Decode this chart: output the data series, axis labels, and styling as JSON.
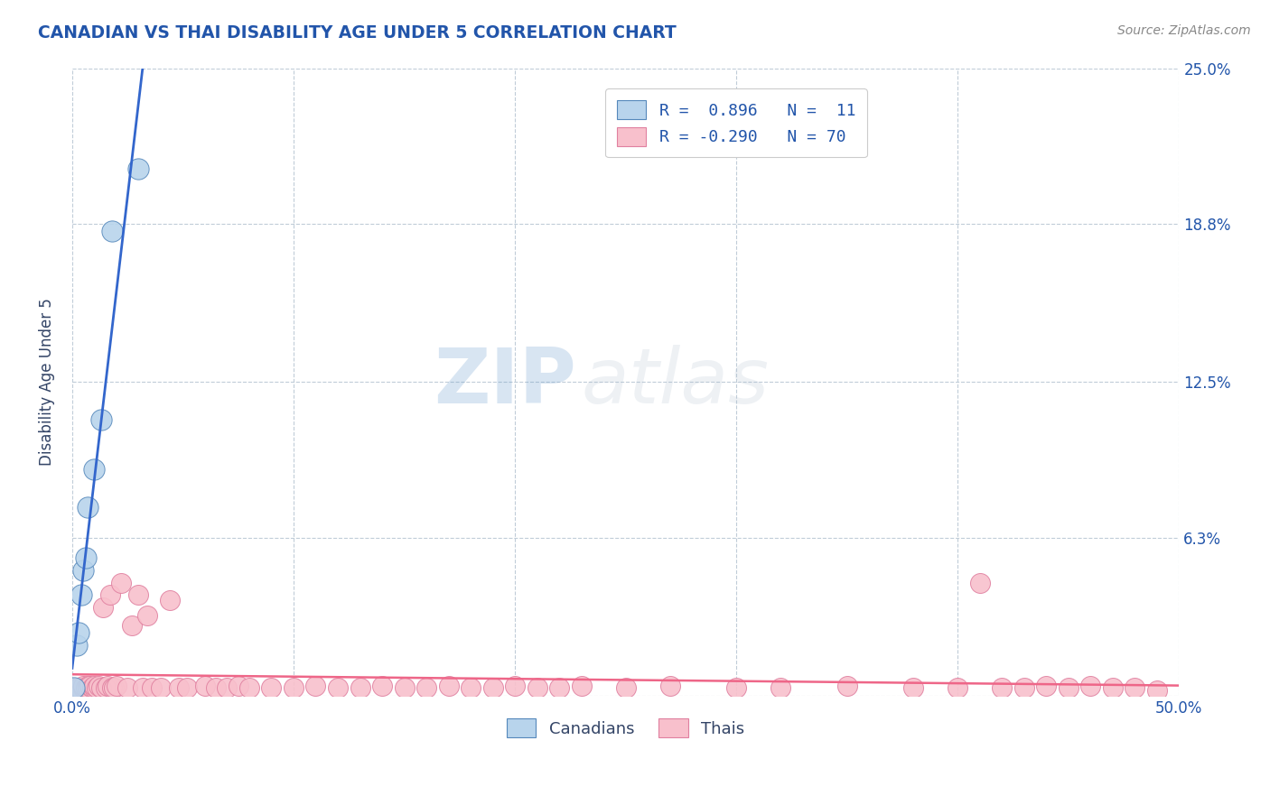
{
  "title": "CANADIAN VS THAI DISABILITY AGE UNDER 5 CORRELATION CHART",
  "source_text": "Source: ZipAtlas.com",
  "ylabel": "Disability Age Under 5",
  "xlabel": "",
  "xlim": [
    0.0,
    0.5
  ],
  "ylim": [
    0.0,
    0.25
  ],
  "yticks": [
    0.0,
    0.063,
    0.125,
    0.188,
    0.25
  ],
  "ytick_labels": [
    "",
    "6.3%",
    "12.5%",
    "18.8%",
    "25.0%"
  ],
  "xticks": [
    0.0,
    0.1,
    0.2,
    0.3,
    0.4,
    0.5
  ],
  "xtick_labels": [
    "0.0%",
    "",
    "",
    "",
    "",
    "50.0%"
  ],
  "canadian_x": [
    0.001,
    0.002,
    0.003,
    0.004,
    0.005,
    0.006,
    0.007,
    0.01,
    0.013,
    0.018,
    0.03
  ],
  "canadian_y": [
    0.003,
    0.02,
    0.025,
    0.04,
    0.05,
    0.055,
    0.075,
    0.09,
    0.11,
    0.185,
    0.21
  ],
  "thai_x": [
    0.001,
    0.002,
    0.003,
    0.004,
    0.005,
    0.005,
    0.006,
    0.007,
    0.007,
    0.008,
    0.009,
    0.01,
    0.01,
    0.011,
    0.012,
    0.013,
    0.014,
    0.015,
    0.016,
    0.017,
    0.018,
    0.019,
    0.02,
    0.022,
    0.025,
    0.027,
    0.03,
    0.032,
    0.034,
    0.036,
    0.04,
    0.044,
    0.048,
    0.052,
    0.06,
    0.065,
    0.07,
    0.075,
    0.08,
    0.09,
    0.1,
    0.11,
    0.12,
    0.13,
    0.14,
    0.15,
    0.16,
    0.17,
    0.18,
    0.19,
    0.2,
    0.21,
    0.22,
    0.23,
    0.25,
    0.27,
    0.3,
    0.32,
    0.35,
    0.38,
    0.4,
    0.41,
    0.42,
    0.43,
    0.44,
    0.45,
    0.46,
    0.47,
    0.48,
    0.49
  ],
  "thai_y": [
    0.002,
    0.003,
    0.003,
    0.002,
    0.003,
    0.004,
    0.003,
    0.004,
    0.003,
    0.004,
    0.003,
    0.003,
    0.004,
    0.003,
    0.004,
    0.003,
    0.035,
    0.003,
    0.004,
    0.04,
    0.003,
    0.003,
    0.004,
    0.045,
    0.003,
    0.028,
    0.04,
    0.003,
    0.032,
    0.003,
    0.003,
    0.038,
    0.003,
    0.003,
    0.004,
    0.003,
    0.003,
    0.004,
    0.003,
    0.003,
    0.003,
    0.004,
    0.003,
    0.003,
    0.004,
    0.003,
    0.003,
    0.004,
    0.003,
    0.003,
    0.004,
    0.003,
    0.003,
    0.004,
    0.003,
    0.004,
    0.003,
    0.003,
    0.004,
    0.003,
    0.003,
    0.045,
    0.003,
    0.003,
    0.004,
    0.003,
    0.004,
    0.003,
    0.003,
    0.002
  ],
  "canadian_color": "#b8d4ec",
  "canadian_edge_color": "#5588bb",
  "thai_color": "#f8c0cc",
  "thai_edge_color": "#e080a0",
  "canadian_trend_color": "#3366cc",
  "thai_trend_color": "#ee6688",
  "legend_r_canadian": "R =  0.896",
  "legend_n_canadian": "N =  11",
  "legend_r_thai": "R = -0.290",
  "legend_n_thai": "N = 70",
  "background_color": "#ffffff",
  "grid_color": "#c0ccd8",
  "watermark_zip": "ZIP",
  "watermark_atlas": "atlas",
  "title_color": "#2255aa",
  "axis_label_color": "#334466",
  "tick_color": "#2255aa",
  "source_color": "#888888"
}
